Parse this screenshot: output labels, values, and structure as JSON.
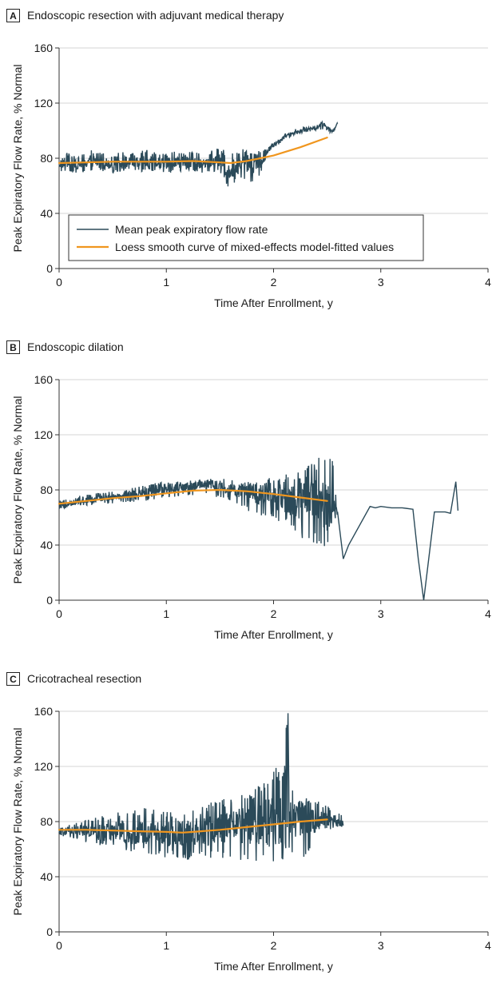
{
  "colors": {
    "mean_line": "#2b4a59",
    "loess_line": "#f0961e",
    "grid": "#d4d4d4",
    "axis": "#333333"
  },
  "chart_data": [
    {
      "type": "line",
      "panel_letter": "A",
      "title": "Endoscopic resection with adjuvant medical therapy",
      "xlabel": "Time After Enrollment, y",
      "ylabel": "Peak Expiratory Flow Rate, % Normal",
      "xlim": [
        0,
        4
      ],
      "ylim": [
        0,
        160
      ],
      "xticks": [
        0,
        1,
        2,
        3,
        4
      ],
      "yticks": [
        0,
        40,
        80,
        120,
        160
      ],
      "grid": "horizontal",
      "legend": {
        "placement": "lower-left",
        "entries": [
          "Mean peak expiratory flow rate",
          "Loess smooth curve of mixed-effects model-fitted values"
        ]
      },
      "series": [
        {
          "name": "Mean peak expiratory flow rate",
          "x": [
            0.0,
            0.1,
            0.2,
            0.3,
            0.4,
            0.5,
            0.6,
            0.7,
            0.8,
            0.9,
            1.0,
            1.1,
            1.2,
            1.3,
            1.4,
            1.5,
            1.55,
            1.6,
            1.7,
            1.8,
            1.9,
            1.95,
            2.0,
            2.05,
            2.1,
            2.15,
            2.2,
            2.3,
            2.4,
            2.45,
            2.5,
            2.55,
            2.6
          ],
          "y": [
            76,
            78,
            76,
            78,
            76,
            77,
            78,
            76,
            78,
            77,
            76,
            77,
            78,
            76,
            77,
            78,
            70,
            72,
            76,
            74,
            78,
            86,
            90,
            92,
            96,
            97,
            99,
            101,
            102,
            105,
            102,
            99,
            106
          ],
          "band_low": [
            70,
            69,
            69,
            70,
            70,
            69,
            71,
            70,
            70,
            70,
            69,
            70,
            71,
            69,
            70,
            70,
            58,
            60,
            66,
            62,
            70,
            84,
            88,
            90,
            94,
            95,
            97,
            99,
            100,
            101,
            100,
            97,
            104
          ],
          "band_high": [
            83,
            86,
            85,
            86,
            84,
            85,
            85,
            84,
            87,
            85,
            84,
            85,
            86,
            84,
            85,
            88,
            86,
            84,
            87,
            84,
            86,
            88,
            92,
            94,
            98,
            99,
            101,
            103,
            104,
            107,
            104,
            101,
            106
          ]
        },
        {
          "name": "Loess smooth curve of mixed-effects model-fitted values",
          "x": [
            0.0,
            0.25,
            0.5,
            0.75,
            1.0,
            1.25,
            1.5,
            1.6,
            1.75,
            2.0,
            2.25,
            2.5
          ],
          "y": [
            76.5,
            77,
            77.5,
            77.5,
            77.5,
            78,
            77,
            76.5,
            78,
            82,
            88,
            95
          ]
        }
      ]
    },
    {
      "type": "line",
      "panel_letter": "B",
      "title": "Endoscopic dilation",
      "xlabel": "Time After Enrollment, y",
      "ylabel": "Peak Expiratory Flow Rate, % Normal",
      "xlim": [
        0,
        4
      ],
      "ylim": [
        0,
        160
      ],
      "xticks": [
        0,
        1,
        2,
        3,
        4
      ],
      "yticks": [
        0,
        40,
        80,
        120,
        160
      ],
      "grid": "horizontal",
      "series": [
        {
          "name": "Mean peak expiratory flow rate",
          "x": [
            0.0,
            0.2,
            0.4,
            0.6,
            0.8,
            1.0,
            1.2,
            1.4,
            1.6,
            1.8,
            2.0,
            2.2,
            2.3,
            2.4,
            2.5,
            2.55,
            2.6,
            2.65,
            2.7,
            2.9,
            2.95,
            3.0,
            3.1,
            3.2,
            3.3,
            3.35,
            3.4,
            3.5,
            3.6,
            3.65,
            3.7,
            3.72
          ],
          "y": [
            68,
            72,
            74,
            76,
            78,
            80,
            82,
            84,
            80,
            78,
            74,
            72,
            72,
            70,
            64,
            66,
            64,
            30,
            40,
            68,
            67,
            68,
            67,
            67,
            66,
            30,
            0,
            64,
            64,
            63,
            86,
            65
          ],
          "band_low": [
            66,
            68,
            70,
            70,
            72,
            74,
            76,
            76,
            72,
            62,
            58,
            50,
            42,
            40,
            36,
            60,
            62,
            30,
            40,
            68,
            67,
            68,
            67,
            67,
            66,
            30,
            0,
            64,
            64,
            63,
            86,
            65
          ],
          "band_high": [
            72,
            76,
            78,
            80,
            84,
            86,
            87,
            88,
            88,
            86,
            90,
            92,
            95,
            104,
            108,
            104,
            64,
            30,
            40,
            68,
            67,
            68,
            67,
            67,
            66,
            30,
            0,
            64,
            64,
            63,
            86,
            65
          ]
        },
        {
          "name": "Loess smooth curve of mixed-effects model-fitted values",
          "x": [
            0.0,
            0.25,
            0.5,
            0.75,
            1.0,
            1.25,
            1.5,
            1.75,
            2.0,
            2.25,
            2.5
          ],
          "y": [
            70,
            72,
            74,
            75.5,
            77.5,
            79.5,
            80,
            79,
            77,
            74.5,
            72
          ]
        }
      ]
    },
    {
      "type": "line",
      "panel_letter": "C",
      "title": "Cricotracheal resection",
      "xlabel": "Time After Enrollment, y",
      "ylabel": "Peak Expiratory Flow Rate, % Normal",
      "xlim": [
        0,
        4
      ],
      "ylim": [
        0,
        160
      ],
      "xticks": [
        0,
        1,
        2,
        3,
        4
      ],
      "yticks": [
        0,
        40,
        80,
        120,
        160
      ],
      "grid": "horizontal",
      "series": [
        {
          "name": "Mean peak expiratory flow rate",
          "x": [
            0.0,
            0.2,
            0.4,
            0.6,
            0.8,
            1.0,
            1.2,
            1.4,
            1.6,
            1.8,
            1.9,
            2.0,
            2.1,
            2.13,
            2.15,
            2.2,
            2.3,
            2.4,
            2.5,
            2.6,
            2.65
          ],
          "y": [
            73,
            74,
            72,
            73,
            72,
            71,
            72,
            74,
            76,
            78,
            80,
            78,
            80,
            157,
            82,
            80,
            82,
            82,
            82,
            80,
            78
          ],
          "band_low": [
            70,
            66,
            62,
            58,
            56,
            54,
            52,
            52,
            52,
            52,
            50,
            50,
            50,
            50,
            52,
            50,
            52,
            74,
            74,
            74,
            72
          ],
          "band_high": [
            78,
            80,
            84,
            88,
            90,
            88,
            86,
            94,
            98,
            104,
            110,
            120,
            116,
            157,
            108,
            100,
            98,
            96,
            92,
            88,
            84
          ]
        },
        {
          "name": "Loess smooth curve of mixed-effects model-fitted values",
          "x": [
            0.0,
            0.25,
            0.5,
            0.75,
            1.0,
            1.15,
            1.25,
            1.5,
            1.75,
            2.0,
            2.25,
            2.5
          ],
          "y": [
            74,
            74,
            73.5,
            73,
            72.5,
            72,
            72.5,
            74,
            76,
            78,
            80,
            81.5
          ]
        }
      ]
    }
  ]
}
